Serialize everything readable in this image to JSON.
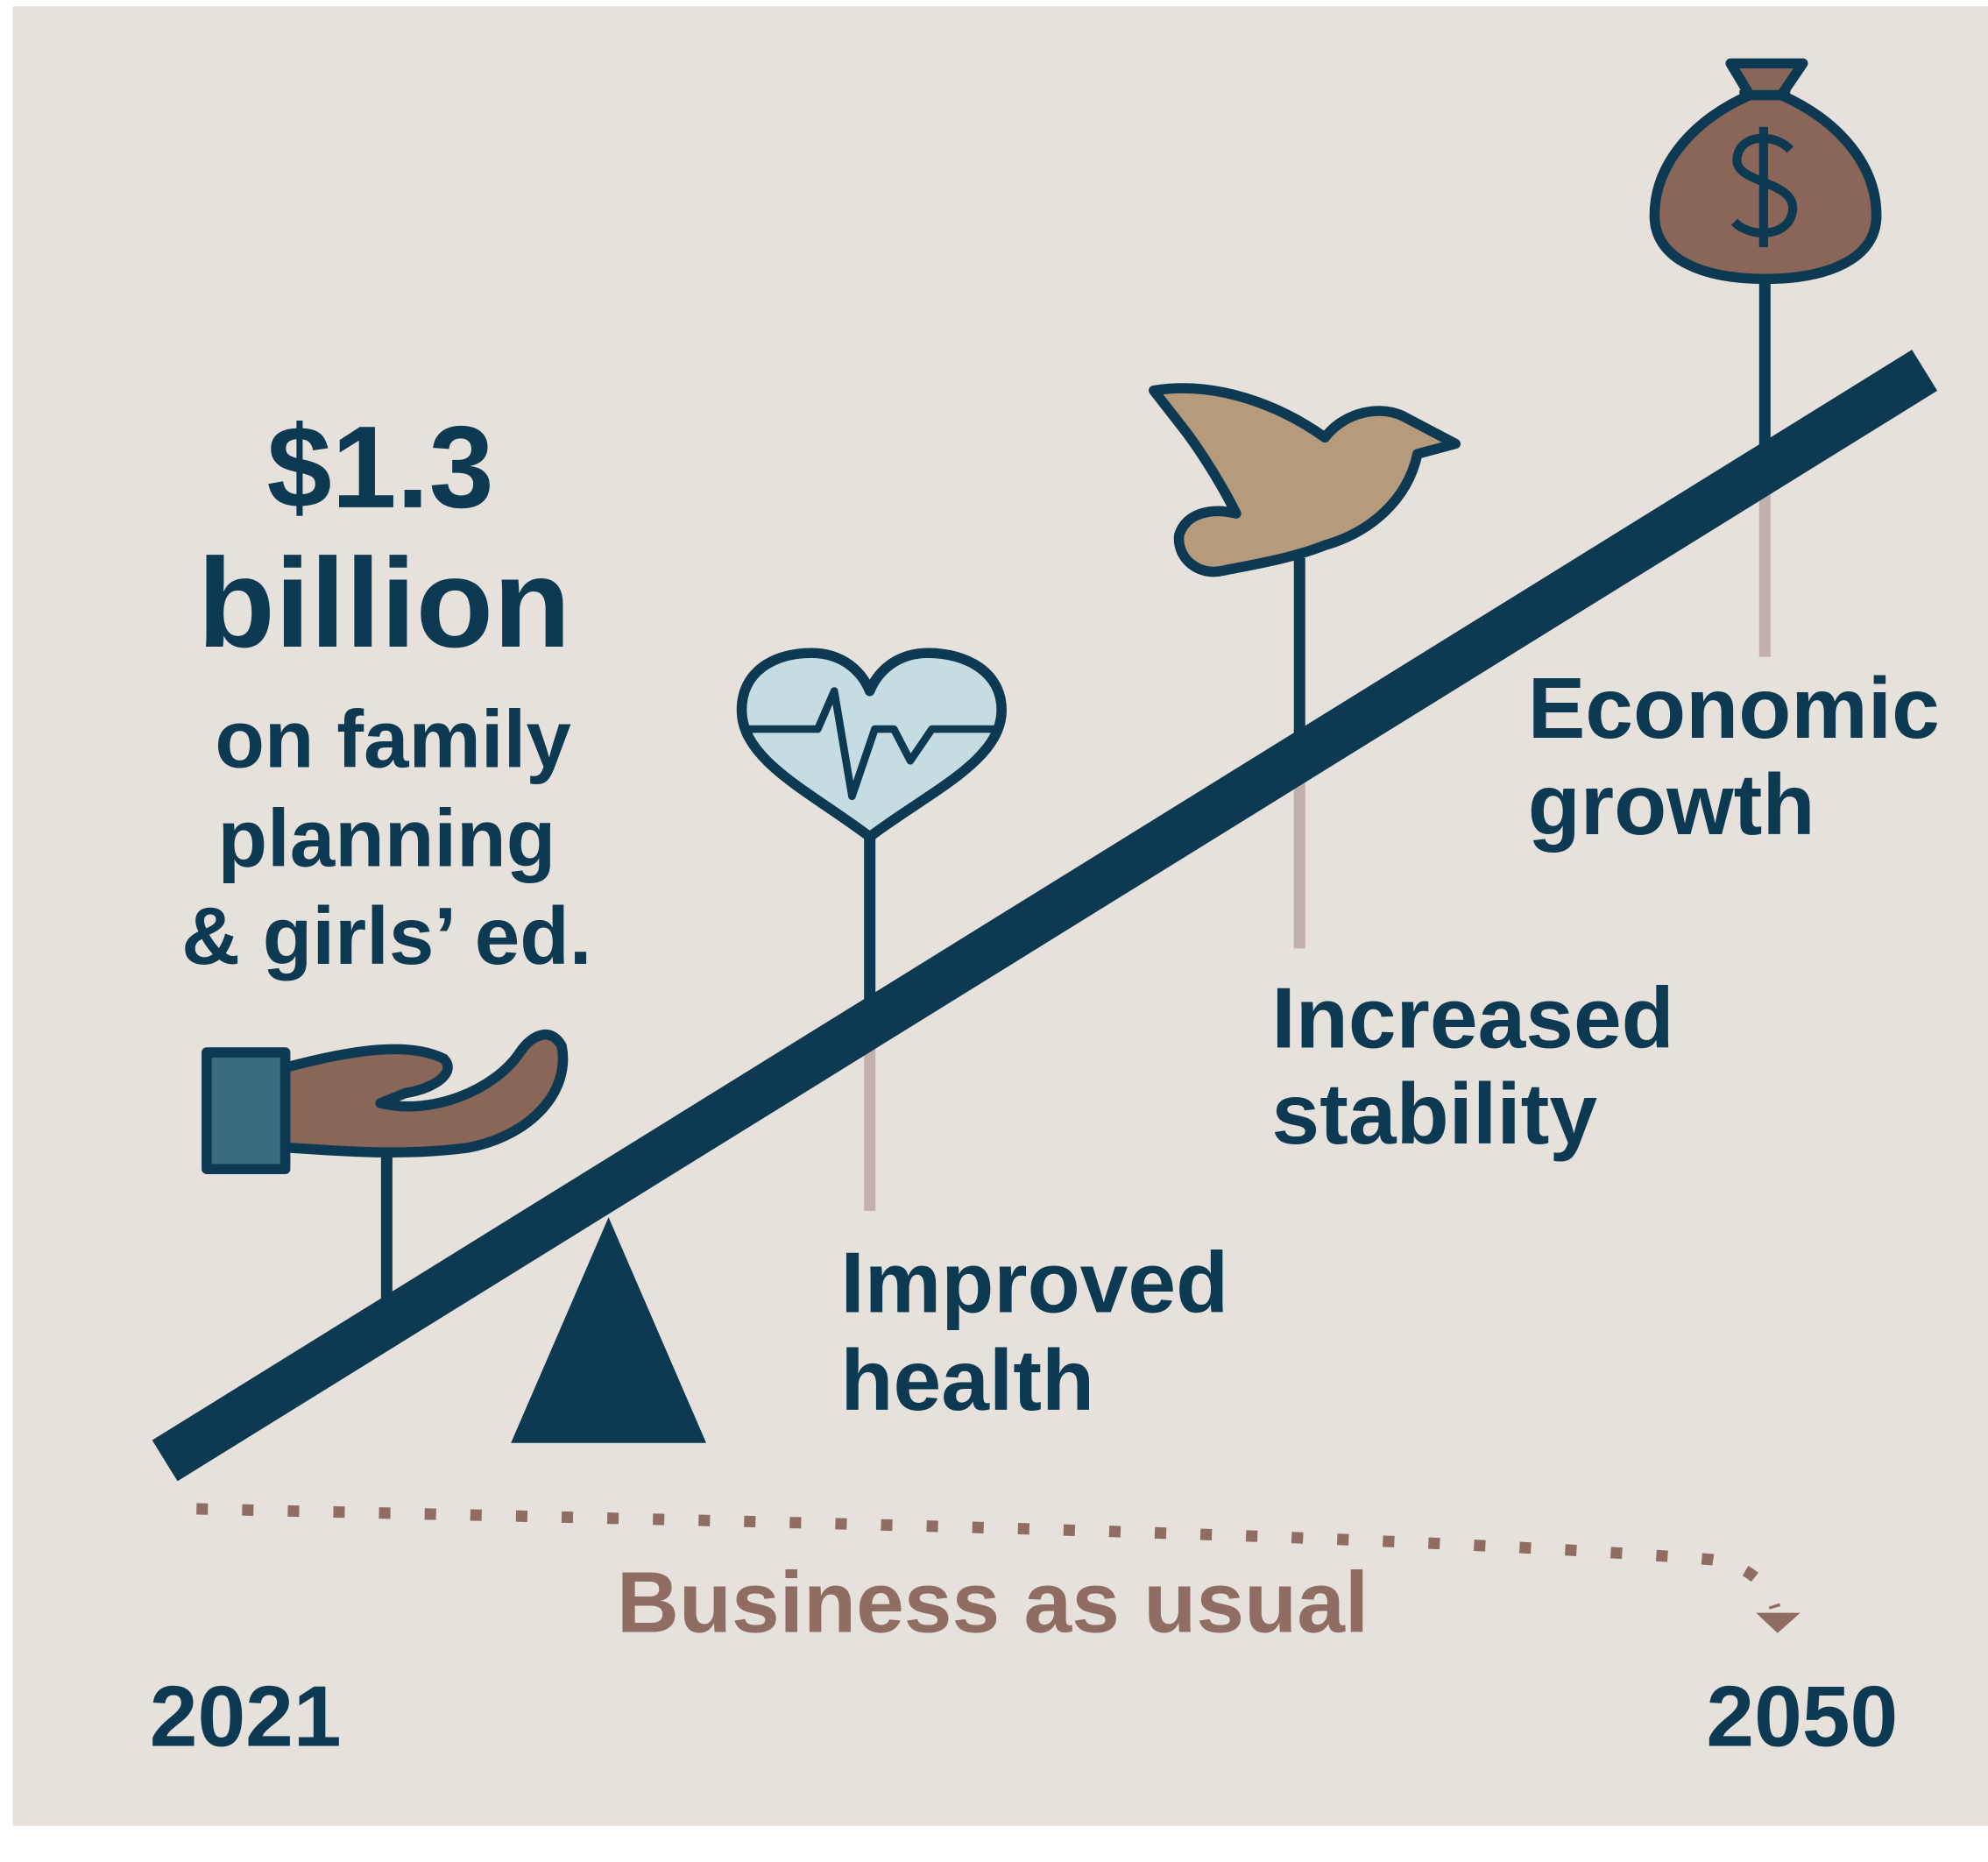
{
  "headline": {
    "amount": "$1.3",
    "unit": "billion",
    "description": [
      "on family",
      "planning",
      "& girls’ ed."
    ]
  },
  "outcomes": [
    {
      "label": [
        "Improved",
        "health"
      ]
    },
    {
      "label": [
        "Increased",
        "stability"
      ]
    },
    {
      "label": [
        "Economic",
        "growth"
      ]
    }
  ],
  "baseline": "Business as usual",
  "start_year": "2021",
  "end_year": "2050"
}
